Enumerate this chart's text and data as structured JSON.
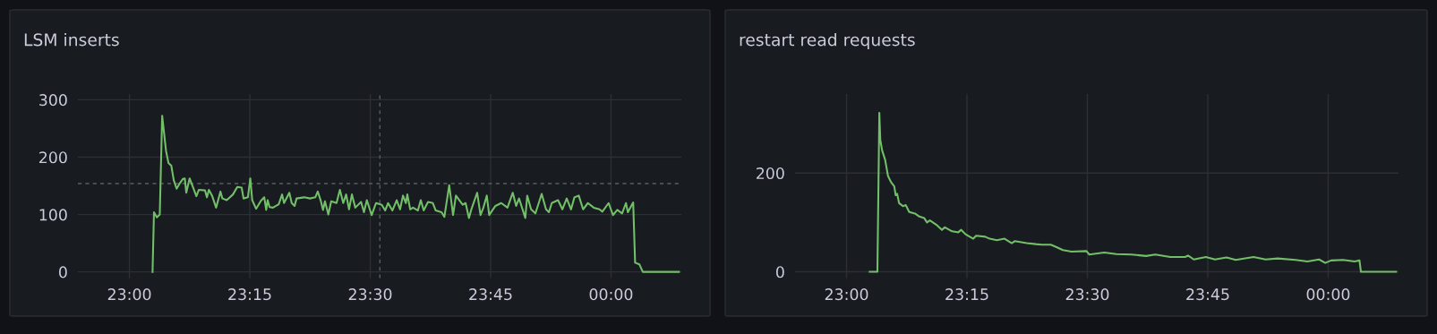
{
  "chart_data": [
    {
      "type": "line",
      "title": "LSM inserts",
      "grid": true,
      "marker": "none",
      "line_style": "solid",
      "xlim": [
        22.893,
        24.146
      ],
      "ylim": [
        -11,
        310
      ],
      "xticks": [
        {
          "value": 23,
          "label": "23:00"
        },
        {
          "value": 23.25,
          "label": "23:15"
        },
        {
          "value": 23.5,
          "label": "23:30"
        },
        {
          "value": 23.75,
          "label": "23:45"
        },
        {
          "value": 24,
          "label": "00:00"
        }
      ],
      "yticks": [
        0,
        100,
        200,
        300
      ],
      "ref_lines": [
        {
          "axis": "x",
          "value": 23.52,
          "line_style": "dashed",
          "color": "#5a5d63"
        },
        {
          "axis": "y",
          "value": 154,
          "line_style": "dashed",
          "color": "#5a5d63"
        }
      ],
      "series": [
        {
          "color": "#73bf69",
          "x": [
            23.048,
            23.051,
            23.057,
            23.063,
            23.068,
            23.076,
            23.081,
            23.087,
            23.092,
            23.098,
            23.105,
            23.111,
            23.115,
            23.118,
            23.125,
            23.131,
            23.139,
            23.144,
            23.157,
            23.161,
            23.165,
            23.172,
            23.18,
            23.189,
            23.193,
            23.202,
            23.215,
            23.224,
            23.233,
            23.237,
            23.246,
            23.251,
            23.255,
            23.263,
            23.273,
            23.28,
            23.284,
            23.287,
            23.291,
            23.298,
            23.31,
            23.317,
            23.321,
            23.332,
            23.337,
            23.343,
            23.347,
            23.363,
            23.375,
            23.386,
            23.391,
            23.397,
            23.402,
            23.406,
            23.413,
            23.419,
            23.43,
            23.437,
            23.444,
            23.45,
            23.456,
            23.462,
            23.469,
            23.481,
            23.487,
            23.493,
            23.503,
            23.512,
            23.524,
            23.531,
            23.537,
            23.546,
            23.555,
            23.562,
            23.568,
            23.574,
            23.577,
            23.583,
            23.589,
            23.599,
            23.605,
            23.611,
            23.62,
            23.63,
            23.636,
            23.648,
            23.654,
            23.664,
            23.672,
            23.678,
            23.685,
            23.692,
            23.698,
            23.705,
            23.71,
            23.722,
            23.729,
            23.735,
            23.742,
            23.747,
            23.76,
            23.772,
            23.785,
            23.796,
            23.803,
            23.809,
            23.822,
            23.826,
            23.834,
            23.843,
            23.856,
            23.865,
            23.871,
            23.877,
            23.89,
            23.899,
            23.908,
            23.917,
            23.924,
            23.933,
            23.942,
            23.952,
            23.964,
            23.976,
            23.982,
            23.995,
            24.004,
            24.013,
            24.023,
            24.031,
            24.035,
            24.046,
            24.05,
            24.059,
            24.066,
            24.141
          ],
          "values": [
            0,
            104,
            95,
            100,
            272,
            211,
            190,
            185,
            160,
            145,
            155,
            162,
            163,
            138,
            163,
            150,
            132,
            143,
            142,
            130,
            143,
            132,
            112,
            140,
            128,
            125,
            135,
            148,
            147,
            128,
            130,
            163,
            125,
            110,
            124,
            130,
            108,
            125,
            113,
            112,
            118,
            135,
            120,
            138,
            120,
            115,
            128,
            130,
            128,
            130,
            140,
            125,
            108,
            123,
            100,
            123,
            120,
            143,
            120,
            135,
            109,
            135,
            112,
            122,
            104,
            125,
            99,
            120,
            117,
            107,
            120,
            107,
            125,
            109,
            133,
            120,
            135,
            109,
            112,
            107,
            125,
            107,
            122,
            120,
            107,
            104,
            96,
            151,
            99,
            133,
            125,
            117,
            120,
            94,
            109,
            138,
            99,
            112,
            133,
            99,
            115,
            120,
            112,
            138,
            115,
            128,
            94,
            133,
            109,
            102,
            136,
            109,
            104,
            120,
            125,
            109,
            128,
            109,
            130,
            133,
            109,
            120,
            112,
            109,
            105,
            120,
            99,
            108,
            102,
            120,
            104,
            121,
            16,
            13,
            0,
            0
          ]
        }
      ]
    },
    {
      "type": "line",
      "title": "restart read requests",
      "grid": true,
      "marker": "none",
      "line_style": "solid",
      "xlim": [
        22.893,
        24.146
      ],
      "ylim": [
        -13,
        360
      ],
      "xticks": [
        {
          "value": 23,
          "label": "23:00"
        },
        {
          "value": 23.25,
          "label": "23:15"
        },
        {
          "value": 23.5,
          "label": "23:30"
        },
        {
          "value": 23.75,
          "label": "23:45"
        },
        {
          "value": 24,
          "label": "00:00"
        }
      ],
      "yticks": [
        0,
        200
      ],
      "series": [
        {
          "color": "#73bf69",
          "x": [
            23.048,
            23.064,
            23.068,
            23.07,
            23.074,
            23.08,
            23.086,
            23.092,
            23.099,
            23.102,
            23.105,
            23.109,
            23.117,
            23.123,
            23.13,
            23.142,
            23.151,
            23.161,
            23.167,
            23.173,
            23.188,
            23.198,
            23.204,
            23.219,
            23.232,
            23.238,
            23.247,
            23.263,
            23.269,
            23.288,
            23.297,
            23.312,
            23.328,
            23.343,
            23.349,
            23.374,
            23.393,
            23.405,
            23.424,
            23.436,
            23.449,
            23.467,
            23.498,
            23.504,
            23.535,
            23.56,
            23.591,
            23.622,
            23.641,
            23.672,
            23.703,
            23.709,
            23.721,
            23.746,
            23.765,
            23.789,
            23.808,
            23.845,
            23.87,
            23.895,
            23.932,
            23.957,
            23.981,
            23.994,
            24.006,
            24.031,
            24.055,
            24.065,
            24.068,
            24.141
          ],
          "values": [
            0,
            0,
            322,
            267,
            245,
            227,
            194,
            182,
            173,
            155,
            158,
            139,
            133,
            135,
            121,
            118,
            112,
            109,
            100,
            104,
            94,
            85,
            90,
            82,
            80,
            85,
            76,
            67,
            73,
            71,
            67,
            64,
            67,
            58,
            62,
            58,
            56,
            55,
            55,
            50,
            44,
            41,
            42,
            35,
            39,
            36,
            35,
            32,
            35,
            30,
            30,
            33,
            25,
            30,
            25,
            29,
            24,
            30,
            25,
            27,
            24,
            21,
            25,
            18,
            23,
            24,
            21,
            23,
            0,
            0
          ]
        }
      ]
    }
  ]
}
